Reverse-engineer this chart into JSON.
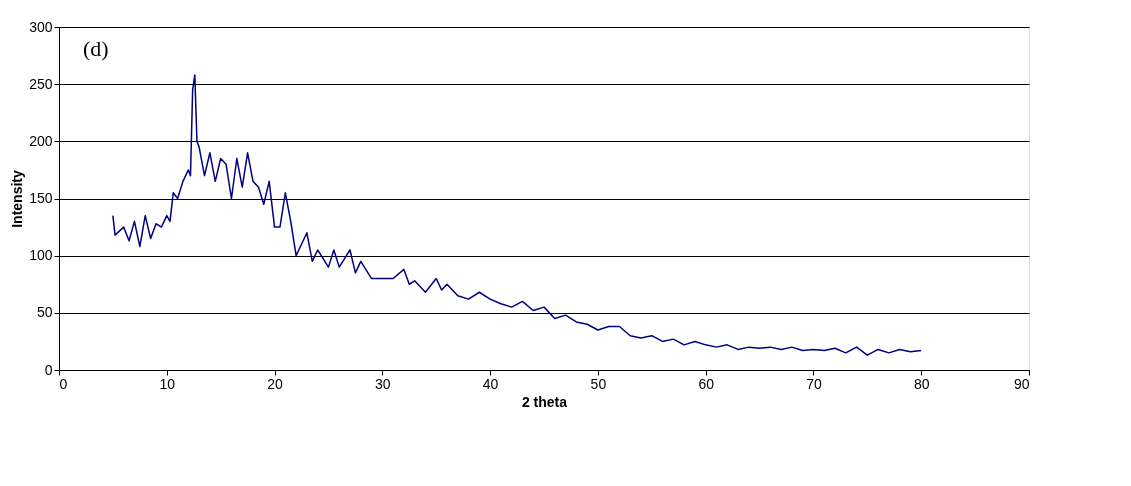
{
  "chart_data": {
    "type": "line",
    "xlabel": "2 theta",
    "ylabel": "Intensity",
    "annotations": [
      "(d)"
    ],
    "x": [
      5,
      5.2,
      6,
      6.5,
      7,
      7.5,
      8,
      8.5,
      9,
      9.5,
      10,
      10.3,
      10.6,
      11,
      11.5,
      12,
      12.2,
      12.4,
      12.6,
      12.8,
      13,
      13.5,
      14,
      14.5,
      15,
      15.5,
      16,
      16.5,
      17,
      17.5,
      18,
      18.5,
      19,
      19.5,
      20,
      20.5,
      21,
      21.5,
      22,
      22.5,
      23,
      23.5,
      24,
      25,
      25.5,
      26,
      27,
      27.5,
      28,
      29,
      30,
      31,
      32,
      32.5,
      33,
      34,
      35,
      35.5,
      36,
      37,
      38,
      39,
      40,
      41,
      42,
      43,
      44,
      45,
      46,
      47,
      48,
      49,
      50,
      51,
      52,
      53,
      54,
      55,
      56,
      57,
      58,
      59,
      60,
      61,
      62,
      63,
      64,
      65,
      66,
      67,
      68,
      69,
      70,
      71,
      72,
      73,
      74,
      75,
      76,
      77,
      78,
      79,
      80
    ],
    "series": [
      {
        "color": "#000080",
        "values": [
          135,
          118,
          125,
          113,
          130,
          108,
          135,
          115,
          128,
          125,
          135,
          130,
          155,
          150,
          165,
          175,
          170,
          245,
          258,
          200,
          195,
          170,
          190,
          165,
          185,
          180,
          150,
          185,
          160,
          190,
          165,
          160,
          145,
          165,
          125,
          125,
          155,
          130,
          100,
          110,
          120,
          95,
          105,
          90,
          105,
          90,
          105,
          85,
          95,
          80,
          80,
          80,
          88,
          75,
          78,
          68,
          80,
          70,
          75,
          65,
          62,
          68,
          62,
          58,
          55,
          60,
          52,
          55,
          45,
          48,
          42,
          40,
          35,
          38,
          38,
          30,
          28,
          30,
          25,
          27,
          22,
          25,
          22,
          20,
          22,
          18,
          20,
          19,
          20,
          18,
          20,
          17,
          18,
          17,
          19,
          15,
          20,
          13,
          18,
          15,
          18,
          16,
          17
        ]
      }
    ],
    "xlim": [
      0,
      90
    ],
    "xticks": [
      0,
      10,
      20,
      30,
      40,
      50,
      60,
      70,
      80,
      90
    ],
    "ylim": [
      0,
      300
    ],
    "yticks": [
      0,
      50,
      100,
      150,
      200,
      250,
      300
    ],
    "grid": "y",
    "legend": false,
    "marker": "none",
    "line_style": "solid"
  }
}
